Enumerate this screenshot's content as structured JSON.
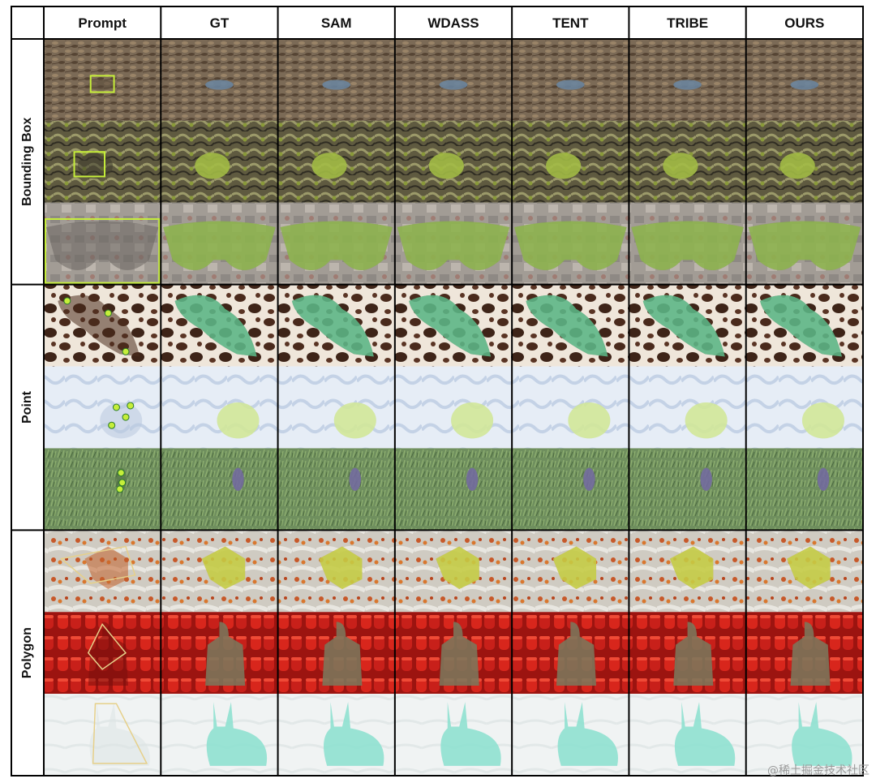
{
  "columns": [
    "Prompt",
    "GT",
    "SAM",
    "WDASS",
    "TENT",
    "TRIBE",
    "OURS"
  ],
  "groups": [
    {
      "label": "Bounding Box",
      "rows": [
        {
          "scene": "dry-leaf-litter",
          "bg": "#7b6a56",
          "bg2": "#5a4a3a",
          "mask": "#6e8fb0"
        },
        {
          "scene": "mossy-bark",
          "bg": "#6e6a4a",
          "bg2": "#3e3c2e",
          "mask": "#b5d44a"
        },
        {
          "scene": "moth-on-stone",
          "bg": "#9a9590",
          "bg2": "#6a6560",
          "mask": "#93c24a"
        }
      ]
    },
    {
      "label": "Point",
      "rows": [
        {
          "scene": "cowhide-pattern",
          "bg": "#e8ddd0",
          "bg2": "#4a2c1e",
          "mask": "#5fcf9a"
        },
        {
          "scene": "seal-pup-on-snow",
          "bg": "#dce6f2",
          "bg2": "#b9c8de",
          "mask": "#d6ec8a"
        },
        {
          "scene": "seagrass-field",
          "bg": "#6f8f5e",
          "bg2": "#4f6e44",
          "mask": "#7a6ab0"
        }
      ]
    },
    {
      "label": "Polygon",
      "rows": [
        {
          "scene": "spider-on-flower",
          "bg": "#c9c7c0",
          "bg2": "#c2602a",
          "mask": "#c6e04a"
        },
        {
          "scene": "red-theater-seats",
          "bg": "#c8211a",
          "bg2": "#7a0f0c",
          "mask": "#7e8a6a"
        },
        {
          "scene": "white-hare",
          "bg": "#eef2f2",
          "bg2": "#dde4e4",
          "mask": "#7fe0cc"
        }
      ]
    }
  ],
  "watermark": "@稀土掘金技术社区"
}
